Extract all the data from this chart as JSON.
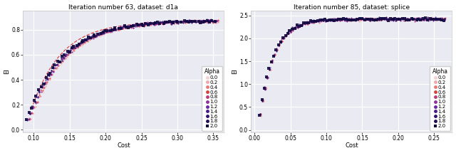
{
  "left_title": "Iteration number 63, dataset: d1a",
  "right_title": "Iteration number 85, dataset: splice",
  "left_xlabel": "Cost",
  "right_xlabel": "Cost",
  "ylabel": "EI",
  "alpha_values": [
    0.0,
    0.2,
    0.4,
    0.6,
    0.8,
    1.0,
    1.2,
    1.4,
    1.6,
    1.8,
    2.0
  ],
  "alpha_labels": [
    "0.0",
    "0.2",
    "0.4",
    "0.6",
    "0.8",
    "1.0",
    "1.2",
    "1.4",
    "1.6",
    "1.8",
    "2.0"
  ],
  "left_xlim": [
    0.085,
    0.365
  ],
  "left_ylim": [
    -0.02,
    0.95
  ],
  "left_xticks": [
    0.1,
    0.15,
    0.2,
    0.25,
    0.3,
    0.35
  ],
  "left_yticks": [
    0.0,
    0.2,
    0.4,
    0.6,
    0.8
  ],
  "right_xlim": [
    -0.005,
    0.275
  ],
  "right_ylim": [
    -0.05,
    2.6
  ],
  "right_xticks": [
    0.0,
    0.05,
    0.1,
    0.15,
    0.2,
    0.25
  ],
  "right_yticks": [
    0.0,
    0.5,
    1.0,
    1.5,
    2.0,
    2.5
  ],
  "background_color": "#eaeaf2",
  "grid_color": "#ffffff",
  "title_fontsize": 6.5,
  "axis_fontsize": 6,
  "tick_fontsize": 5.5,
  "legend_fontsize": 5,
  "legend_title_fontsize": 5.5,
  "legend_colors": [
    "#f7d0d0",
    "#f0a8a8",
    "#e87878",
    "#d94040",
    "#c03878",
    "#9030a0",
    "#6825a8",
    "#4a1890",
    "#301070",
    "#200c58",
    "#100840"
  ],
  "pareto_color": "#cc3333",
  "point_size_regular": 2.5,
  "point_size_square": 6.0,
  "n_curve_points": 80
}
